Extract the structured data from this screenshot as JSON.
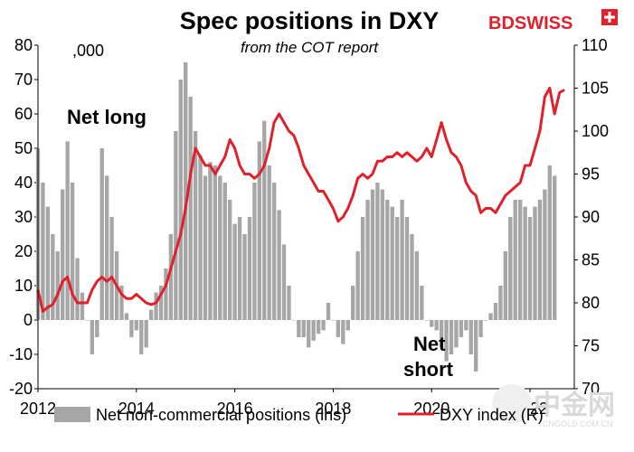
{
  "chart_data": {
    "type": "bar+line",
    "title": "Spec positions in DXY",
    "subtitle": "from the COT report",
    "left_axis_unit": ",000",
    "left_axis": {
      "ylim": [
        -20,
        80
      ],
      "ticks": [
        "-20",
        "-10",
        "0",
        "10",
        "20",
        "30",
        "40",
        "50",
        "60",
        "70",
        "80"
      ]
    },
    "right_axis": {
      "ylim": [
        70,
        110
      ],
      "ticks": [
        "70",
        "75",
        "80",
        "85",
        "90",
        "95",
        "100",
        "105",
        "110"
      ]
    },
    "x_axis": {
      "range": [
        2012.0,
        2022.9
      ],
      "ticks": [
        "2012",
        "2014",
        "2016",
        "2018",
        "2020",
        "2022"
      ]
    },
    "annotations": {
      "net_long": "Net long",
      "net_short_1": "Net",
      "net_short_2": "short"
    },
    "legend_position": "bottom",
    "series": [
      {
        "name": "Net non-commercial positions (lhs)",
        "kind": "bar",
        "axis": "left",
        "color": "#a6a6a6",
        "x": [
          2012.0,
          2012.1,
          2012.2,
          2012.3,
          2012.4,
          2012.5,
          2012.6,
          2012.7,
          2012.8,
          2012.9,
          2013.0,
          2013.1,
          2013.2,
          2013.3,
          2013.4,
          2013.5,
          2013.6,
          2013.7,
          2013.8,
          2013.9,
          2014.0,
          2014.1,
          2014.2,
          2014.3,
          2014.4,
          2014.5,
          2014.6,
          2014.7,
          2014.8,
          2014.9,
          2015.0,
          2015.1,
          2015.2,
          2015.3,
          2015.4,
          2015.5,
          2015.6,
          2015.7,
          2015.8,
          2015.9,
          2016.0,
          2016.1,
          2016.2,
          2016.3,
          2016.4,
          2016.5,
          2016.6,
          2016.7,
          2016.8,
          2016.9,
          2017.0,
          2017.1,
          2017.2,
          2017.3,
          2017.4,
          2017.5,
          2017.6,
          2017.7,
          2017.8,
          2017.9,
          2018.0,
          2018.1,
          2018.2,
          2018.3,
          2018.4,
          2018.5,
          2018.6,
          2018.7,
          2018.8,
          2018.9,
          2019.0,
          2019.1,
          2019.2,
          2019.3,
          2019.4,
          2019.5,
          2019.6,
          2019.7,
          2019.8,
          2019.9,
          2020.0,
          2020.1,
          2020.2,
          2020.3,
          2020.4,
          2020.5,
          2020.6,
          2020.7,
          2020.8,
          2020.9,
          2021.0,
          2021.1,
          2021.2,
          2021.3,
          2021.4,
          2021.5,
          2021.6,
          2021.7,
          2021.8,
          2021.9,
          2022.0,
          2022.1,
          2022.2,
          2022.3,
          2022.4,
          2022.5
        ],
        "values": [
          50,
          40,
          33,
          25,
          20,
          38,
          52,
          40,
          18,
          8,
          0,
          -10,
          -5,
          50,
          42,
          30,
          20,
          10,
          2,
          -5,
          -3,
          -10,
          -8,
          3,
          8,
          10,
          15,
          25,
          55,
          70,
          75,
          65,
          55,
          48,
          42,
          46,
          45,
          42,
          40,
          35,
          28,
          30,
          25,
          30,
          40,
          52,
          58,
          45,
          40,
          32,
          22,
          10,
          0,
          -5,
          -5,
          -8,
          -6,
          -4,
          -3,
          5,
          0,
          -5,
          -7,
          -3,
          10,
          20,
          30,
          35,
          38,
          40,
          38,
          35,
          33,
          30,
          35,
          30,
          25,
          20,
          10,
          0,
          -2,
          -3,
          -8,
          -12,
          -10,
          -8,
          -5,
          -3,
          -10,
          -15,
          -5,
          0,
          2,
          5,
          10,
          20,
          30,
          35,
          35,
          33,
          30,
          33,
          35,
          38,
          45,
          42
        ]
      },
      {
        "name": "DXY index (R)",
        "kind": "line",
        "axis": "right",
        "color": "#e0202a",
        "x": [
          2012.0,
          2012.1,
          2012.2,
          2012.3,
          2012.4,
          2012.5,
          2012.6,
          2012.7,
          2012.8,
          2012.9,
          2013.0,
          2013.1,
          2013.2,
          2013.3,
          2013.4,
          2013.5,
          2013.6,
          2013.7,
          2013.8,
          2013.9,
          2014.0,
          2014.1,
          2014.2,
          2014.3,
          2014.4,
          2014.5,
          2014.6,
          2014.7,
          2014.8,
          2014.9,
          2015.0,
          2015.1,
          2015.2,
          2015.3,
          2015.4,
          2015.5,
          2015.6,
          2015.7,
          2015.8,
          2015.9,
          2016.0,
          2016.1,
          2016.2,
          2016.3,
          2016.4,
          2016.5,
          2016.6,
          2016.7,
          2016.8,
          2016.9,
          2017.0,
          2017.1,
          2017.2,
          2017.3,
          2017.4,
          2017.5,
          2017.6,
          2017.7,
          2017.8,
          2017.9,
          2018.0,
          2018.1,
          2018.2,
          2018.3,
          2018.4,
          2018.5,
          2018.6,
          2018.7,
          2018.8,
          2018.9,
          2019.0,
          2019.1,
          2019.2,
          2019.3,
          2019.4,
          2019.5,
          2019.6,
          2019.7,
          2019.8,
          2019.9,
          2020.0,
          2020.1,
          2020.2,
          2020.3,
          2020.4,
          2020.5,
          2020.6,
          2020.7,
          2020.8,
          2020.9,
          2021.0,
          2021.1,
          2021.2,
          2021.3,
          2021.4,
          2021.5,
          2021.6,
          2021.7,
          2021.8,
          2021.9,
          2022.0,
          2022.1,
          2022.2,
          2022.3,
          2022.4,
          2022.5,
          2022.6,
          2022.7
        ],
        "values": [
          81.5,
          79,
          79.5,
          79.8,
          81,
          82.5,
          83,
          81,
          80,
          80,
          80,
          81.5,
          82.5,
          83,
          82.5,
          83,
          82,
          81,
          80.5,
          80.5,
          81,
          80.5,
          80,
          79.8,
          80,
          81,
          82,
          84,
          86,
          88,
          91,
          95,
          98,
          97,
          96,
          96,
          95,
          96,
          97,
          99,
          98,
          96,
          95,
          95,
          94.5,
          95,
          96,
          98,
          101,
          102,
          101,
          100,
          99.5,
          98,
          96,
          95,
          94,
          93,
          93,
          92,
          91,
          89.5,
          90,
          91,
          92.5,
          94.5,
          95,
          94.5,
          95,
          96.5,
          96.5,
          97,
          97,
          97.5,
          97,
          97.5,
          97,
          96.5,
          97,
          98,
          97,
          99,
          101,
          99,
          97.5,
          97,
          96,
          94,
          93,
          92.5,
          90.5,
          91,
          91,
          90.5,
          91.5,
          92.5,
          93,
          93.5,
          94,
          96,
          96,
          98,
          100,
          104,
          105,
          102,
          104.5,
          104.8
        ]
      }
    ]
  },
  "brand": {
    "name": "BDSWISS",
    "accent": "#e0202a"
  },
  "watermark": {
    "text": "中金网",
    "url": "CNGOLD.COM.CN"
  }
}
